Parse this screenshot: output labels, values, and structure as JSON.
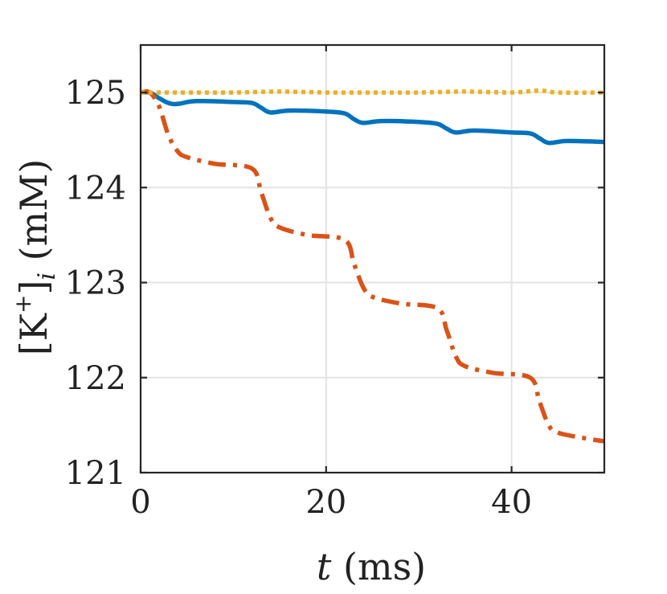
{
  "chart_data": {
    "type": "line",
    "xlabel": "t (ms)",
    "ylabel": "[K+]i (mM)",
    "xlim": [
      0,
      50
    ],
    "ylim": [
      121,
      125.5
    ],
    "xticks": [
      0,
      20,
      40
    ],
    "yticks": [
      121,
      122,
      123,
      124,
      125
    ],
    "grid": true,
    "series": [
      {
        "style": "solid",
        "color": "#0072BD",
        "x": [
          0,
          1,
          2,
          3,
          4,
          6,
          10,
          12,
          13,
          14,
          16,
          20,
          22,
          23,
          24,
          26,
          30,
          32,
          33,
          34,
          36,
          40,
          42,
          43,
          44,
          46,
          50
        ],
        "y": [
          125.0,
          125.0,
          124.94,
          124.89,
          124.88,
          124.91,
          124.9,
          124.89,
          124.84,
          124.79,
          124.81,
          124.8,
          124.78,
          124.72,
          124.68,
          124.7,
          124.69,
          124.67,
          124.62,
          124.58,
          124.6,
          124.58,
          124.57,
          124.52,
          124.47,
          124.49,
          124.48
        ]
      },
      {
        "style": "dashdot",
        "color": "#D95319",
        "x": [
          0,
          1,
          2,
          3,
          4,
          5,
          8,
          12,
          13,
          14,
          15,
          18,
          22,
          23,
          24,
          25,
          28,
          32,
          33,
          34,
          35,
          38,
          42,
          43,
          44,
          45,
          48,
          50
        ],
        "y": [
          125.0,
          125.0,
          124.85,
          124.55,
          124.38,
          124.32,
          124.25,
          124.2,
          123.95,
          123.68,
          123.58,
          123.5,
          123.45,
          123.2,
          122.95,
          122.85,
          122.78,
          122.73,
          122.5,
          122.22,
          122.12,
          122.05,
          122.0,
          121.75,
          121.5,
          121.42,
          121.36,
          121.33
        ]
      },
      {
        "style": "dotted",
        "color": "#EDB120",
        "x": [
          0,
          5,
          10,
          15,
          20,
          25,
          30,
          35,
          40,
          43,
          45,
          50
        ],
        "y": [
          125.0,
          125.0,
          125.0,
          125.01,
          125.0,
          125.0,
          125.0,
          125.01,
          125.0,
          125.02,
          125.0,
          125.0
        ]
      }
    ]
  }
}
